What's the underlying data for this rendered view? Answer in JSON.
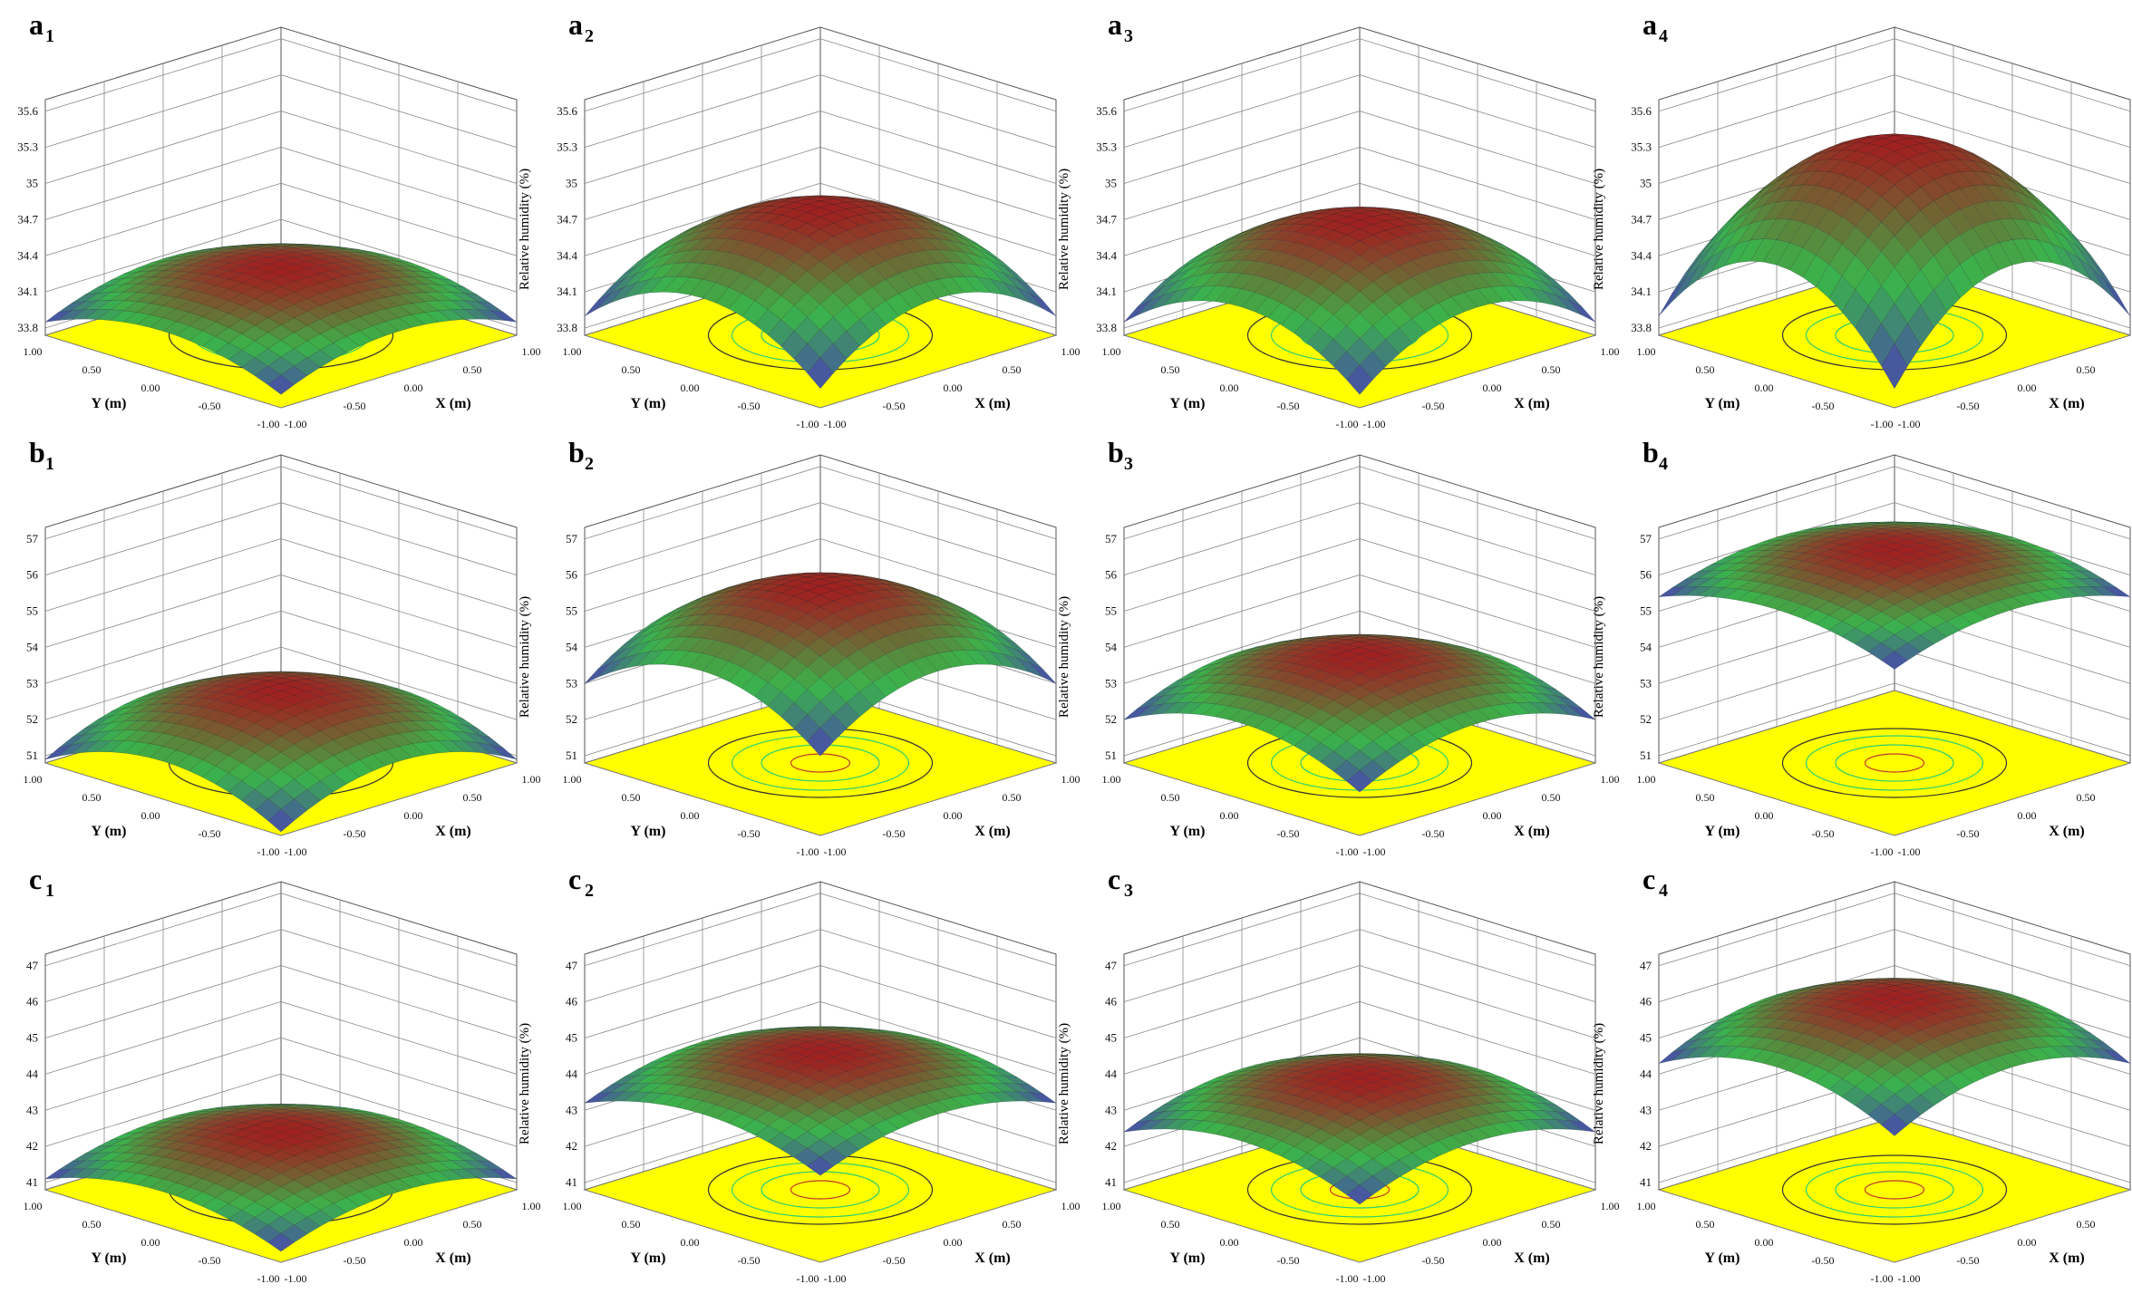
{
  "chart_data": [
    {
      "type": "surface",
      "label": "a",
      "sub": "1",
      "ylabel": "Relative humidity (%)",
      "xlabel": "X (m)",
      "hlabel": "Y (m)",
      "zticks": [
        "35.6",
        "35.3",
        "35",
        "34.7",
        "34.4",
        "34.1",
        "33.8"
      ],
      "zlim": [
        33.8,
        35.6
      ],
      "peak": 34.3,
      "corner": 33.85,
      "xticks": [
        "-1.00",
        "-0.50",
        "0.00",
        "0.50",
        "1.00"
      ],
      "yticks": [
        "-1.00",
        "-0.50",
        "0.00",
        "0.50",
        "1.00"
      ]
    },
    {
      "type": "surface",
      "label": "a",
      "sub": "2",
      "ylabel": "Relative humidity (%)",
      "xlabel": "X (m)",
      "hlabel": "Y (m)",
      "zticks": [
        "35.6",
        "35.3",
        "35",
        "34.7",
        "34.4",
        "34.1",
        "33.8"
      ],
      "zlim": [
        33.8,
        35.6
      ],
      "peak": 34.8,
      "corner": 33.9,
      "xticks": [
        "-1.00",
        "-0.50",
        "0.00",
        "0.50",
        "1.00"
      ],
      "yticks": [
        "-1.00",
        "-0.50",
        "0.00",
        "0.50",
        "1.00"
      ]
    },
    {
      "type": "surface",
      "label": "a",
      "sub": "3",
      "ylabel": "Relative humidity (%)",
      "xlabel": "X (m)",
      "hlabel": "Y (m)",
      "zticks": [
        "35.6",
        "35.3",
        "35",
        "34.7",
        "34.4",
        "34.1",
        "33.8"
      ],
      "zlim": [
        33.8,
        35.6
      ],
      "peak": 34.7,
      "corner": 33.85,
      "xticks": [
        "-1.00",
        "-0.50",
        "0.00",
        "0.50",
        "1.00"
      ],
      "yticks": [
        "-1.00",
        "-0.50",
        "0.00",
        "0.50",
        "1.00"
      ]
    },
    {
      "type": "surface",
      "label": "a",
      "sub": "4",
      "ylabel": "Relative humidity (%)",
      "xlabel": "X (m)",
      "hlabel": "Y (m)",
      "zticks": [
        "35.6",
        "35.3",
        "35",
        "34.7",
        "34.4",
        "34.1",
        "33.8"
      ],
      "zlim": [
        33.8,
        35.6
      ],
      "peak": 35.35,
      "corner": 33.9,
      "xticks": [
        "-1.00",
        "-0.50",
        "0.00",
        "0.50",
        "1.00"
      ],
      "yticks": [
        "-1.00",
        "-0.50",
        "0.00",
        "0.50",
        "1.00"
      ]
    },
    {
      "type": "surface",
      "label": "b",
      "sub": "1",
      "ylabel": "Relative humidity (%)",
      "xlabel": "X (m)",
      "hlabel": "Y (m)",
      "zticks": [
        "57",
        "56",
        "55",
        "54",
        "53",
        "52",
        "51"
      ],
      "zlim": [
        51,
        57
      ],
      "peak": 52.8,
      "corner": 50.9,
      "xticks": [
        "-1.00",
        "-0.50",
        "0.00",
        "0.50",
        "1.00"
      ],
      "yticks": [
        "-1.00",
        "-0.50",
        "0.00",
        "0.50",
        "1.00"
      ]
    },
    {
      "type": "surface",
      "label": "b",
      "sub": "2",
      "ylabel": "Relative humidity (%)",
      "xlabel": "X (m)",
      "hlabel": "Y (m)",
      "zticks": [
        "57",
        "56",
        "55",
        "54",
        "53",
        "52",
        "51"
      ],
      "zlim": [
        51,
        57
      ],
      "peak": 55.7,
      "corner": 53.0,
      "xticks": [
        "-1.00",
        "-0.50",
        "0.00",
        "0.50",
        "1.00"
      ],
      "yticks": [
        "-1.00",
        "-0.50",
        "0.00",
        "0.50",
        "1.00"
      ]
    },
    {
      "type": "surface",
      "label": "b",
      "sub": "3",
      "ylabel": "Relative humidity (%)",
      "xlabel": "X (m)",
      "hlabel": "Y (m)",
      "zticks": [
        "57",
        "56",
        "55",
        "54",
        "53",
        "52",
        "51"
      ],
      "zlim": [
        51,
        57
      ],
      "peak": 53.8,
      "corner": 52.0,
      "xticks": [
        "-1.00",
        "-0.50",
        "0.00",
        "0.50",
        "1.00"
      ],
      "yticks": [
        "-1.00",
        "-0.50",
        "0.00",
        "0.50",
        "1.00"
      ]
    },
    {
      "type": "surface",
      "label": "b",
      "sub": "4",
      "ylabel": "Relative humidity (%)",
      "xlabel": "X (m)",
      "hlabel": "Y (m)",
      "zticks": [
        "57",
        "56",
        "55",
        "54",
        "53",
        "52",
        "51"
      ],
      "zlim": [
        51,
        57
      ],
      "peak": 56.7,
      "corner": 55.4,
      "xticks": [
        "-1.00",
        "-0.50",
        "0.00",
        "0.50",
        "1.00"
      ],
      "yticks": [
        "-1.00",
        "-0.50",
        "0.00",
        "0.50",
        "1.00"
      ]
    },
    {
      "type": "surface",
      "label": "c",
      "sub": "1",
      "ylabel": "Relative humidity (%)",
      "xlabel": "X (m)",
      "hlabel": "Y (m)",
      "zticks": [
        "47",
        "46",
        "45",
        "44",
        "43",
        "42",
        "41"
      ],
      "zlim": [
        41,
        47
      ],
      "peak": 42.4,
      "corner": 41.1,
      "xticks": [
        "-1.00",
        "-0.50",
        "0.00",
        "0.50",
        "1.00"
      ],
      "yticks": [
        "-1.00",
        "-0.50",
        "0.00",
        "0.50",
        "1.00"
      ]
    },
    {
      "type": "surface",
      "label": "c",
      "sub": "2",
      "ylabel": "Relative humidity (%)",
      "xlabel": "X (m)",
      "hlabel": "Y (m)",
      "zticks": [
        "47",
        "46",
        "45",
        "44",
        "43",
        "42",
        "41"
      ],
      "zlim": [
        41,
        47
      ],
      "peak": 44.6,
      "corner": 43.2,
      "xticks": [
        "-1.00",
        "-0.50",
        "0.00",
        "0.50",
        "1.00"
      ],
      "yticks": [
        "-1.00",
        "-0.50",
        "0.00",
        "0.50",
        "1.00"
      ]
    },
    {
      "type": "surface",
      "label": "c",
      "sub": "3",
      "ylabel": "Relative humidity (%)",
      "xlabel": "X (m)",
      "hlabel": "Y (m)",
      "zticks": [
        "47",
        "46",
        "45",
        "44",
        "43",
        "42",
        "41"
      ],
      "zlim": [
        41,
        47
      ],
      "peak": 43.9,
      "corner": 42.4,
      "xticks": [
        "-1.00",
        "-0.50",
        "0.00",
        "0.50",
        "1.00"
      ],
      "yticks": [
        "-1.00",
        "-0.50",
        "0.00",
        "0.50",
        "1.00"
      ]
    },
    {
      "type": "surface",
      "label": "c",
      "sub": "4",
      "ylabel": "Relative humidity (%)",
      "xlabel": "X (m)",
      "hlabel": "Y (m)",
      "zticks": [
        "47",
        "46",
        "45",
        "44",
        "43",
        "42",
        "41"
      ],
      "zlim": [
        41,
        47
      ],
      "peak": 46.1,
      "corner": 44.3,
      "xticks": [
        "-1.00",
        "-0.50",
        "0.00",
        "0.50",
        "1.00"
      ],
      "yticks": [
        "-1.00",
        "-0.50",
        "0.00",
        "0.50",
        "1.00"
      ]
    }
  ],
  "colors": {
    "floor": "#ffff00",
    "low": "#4a3fb5",
    "mid": "#3ab54a",
    "high": "#a02020",
    "grid": "#555555",
    "contour": "#2ecc71"
  }
}
